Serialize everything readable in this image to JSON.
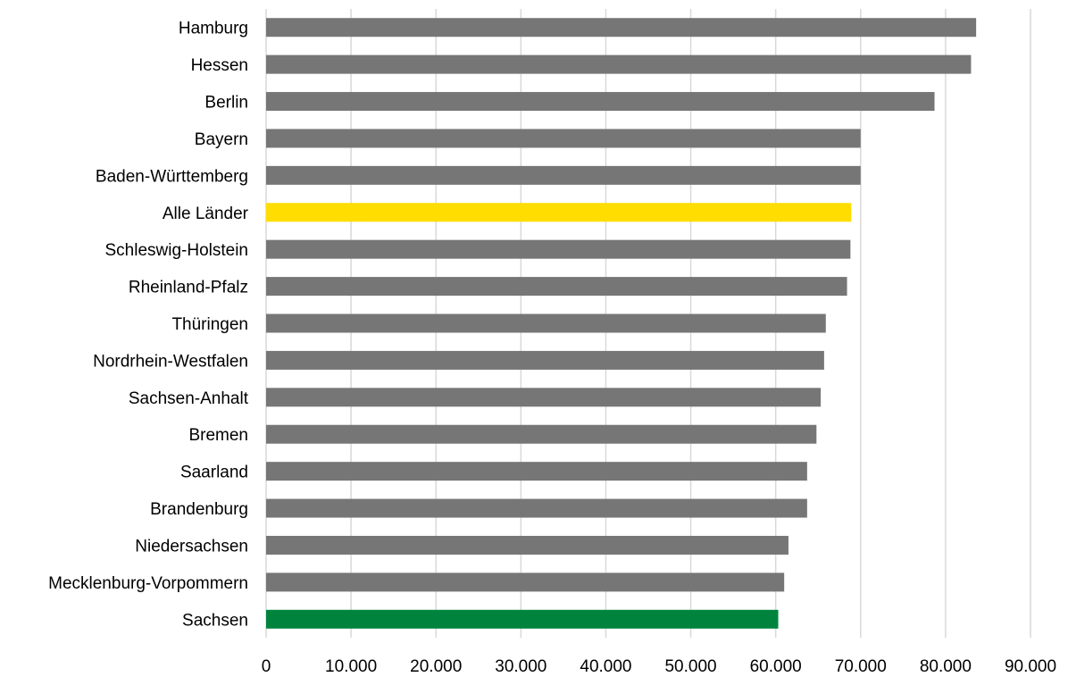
{
  "chart_data": {
    "type": "bar",
    "orientation": "horizontal",
    "categories": [
      "Hamburg",
      "Hessen",
      "Berlin",
      "Bayern",
      "Baden-Württemberg",
      "Alle Länder",
      "Schleswig-Holstein",
      "Rheinland-Pfalz",
      "Thüringen",
      "Nordrhein-Westfalen",
      "Sachsen-Anhalt",
      "Bremen",
      "Saarland",
      "Brandenburg",
      "Niedersachsen",
      "Mecklenburg-Vorpommern",
      "Sachsen"
    ],
    "values": [
      83600,
      83000,
      78700,
      70000,
      70000,
      68900,
      68800,
      68400,
      65900,
      65700,
      65300,
      64800,
      63700,
      63700,
      61500,
      61000,
      60300
    ],
    "bar_colors": [
      "#767676",
      "#767676",
      "#767676",
      "#767676",
      "#767676",
      "#ffdd00",
      "#767676",
      "#767676",
      "#767676",
      "#767676",
      "#767676",
      "#767676",
      "#767676",
      "#767676",
      "#767676",
      "#767676",
      "#00843d"
    ],
    "xlim": [
      0,
      90000
    ],
    "xticks": [
      0,
      10000,
      20000,
      30000,
      40000,
      50000,
      60000,
      70000,
      80000,
      90000
    ],
    "xtick_labels": [
      "0",
      "10.000",
      "20.000",
      "30.000",
      "40.000",
      "50.000",
      "60.000",
      "70.000",
      "80.000",
      "90.000"
    ],
    "grid": true,
    "grid_color": "#d9d9d9",
    "title": "",
    "xlabel": "",
    "ylabel": "",
    "legend": "none"
  }
}
